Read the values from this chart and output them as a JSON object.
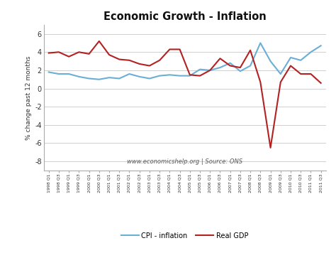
{
  "title": "Economic Growth - Inflation",
  "ylabel": "% change past 12 months",
  "watermark": "www.economicshelp.org | Source: ONS",
  "ylim": [
    -9,
    7
  ],
  "yticks": [
    -8,
    -6,
    -4,
    -2,
    0,
    2,
    4,
    6
  ],
  "background_color": "#ffffff",
  "plot_bg_color": "#ffffff",
  "cpi_color": "#6baed6",
  "gdp_color": "#b22222",
  "labels": [
    "1998 Q1",
    "1998 Q3",
    "1999 Q1",
    "1999 Q3",
    "2000 Q1",
    "2000 Q3",
    "2001 Q1",
    "2001 Q3",
    "2002 Q1",
    "2002 Q3",
    "2003 Q1",
    "2003 Q3",
    "2004 Q1",
    "2004 Q3",
    "2005 Q1",
    "2005 Q3",
    "2006 Q1",
    "2006 Q3",
    "2007 Q1",
    "2007 Q3",
    "2008 Q1",
    "2008 Q3",
    "2009 Q1",
    "2009 Q3",
    "2010 Q1",
    "2010 Q3",
    "2011 Q1",
    "2011 Q3"
  ],
  "cpi": [
    1.8,
    1.6,
    1.6,
    1.3,
    1.1,
    1.0,
    1.2,
    1.1,
    1.6,
    1.3,
    1.1,
    1.4,
    1.5,
    1.4,
    1.4,
    2.1,
    2.0,
    2.3,
    2.8,
    1.9,
    2.5,
    5.0,
    3.0,
    1.6,
    3.4,
    3.1,
    4.0,
    4.7
  ],
  "gdp": [
    3.9,
    4.0,
    3.5,
    4.0,
    3.8,
    5.2,
    3.7,
    3.2,
    3.1,
    2.7,
    2.5,
    3.1,
    4.3,
    4.3,
    1.5,
    1.4,
    2.0,
    3.3,
    2.5,
    2.3,
    4.2,
    0.7,
    -6.5,
    0.7,
    2.5,
    1.6,
    1.6,
    0.6
  ]
}
